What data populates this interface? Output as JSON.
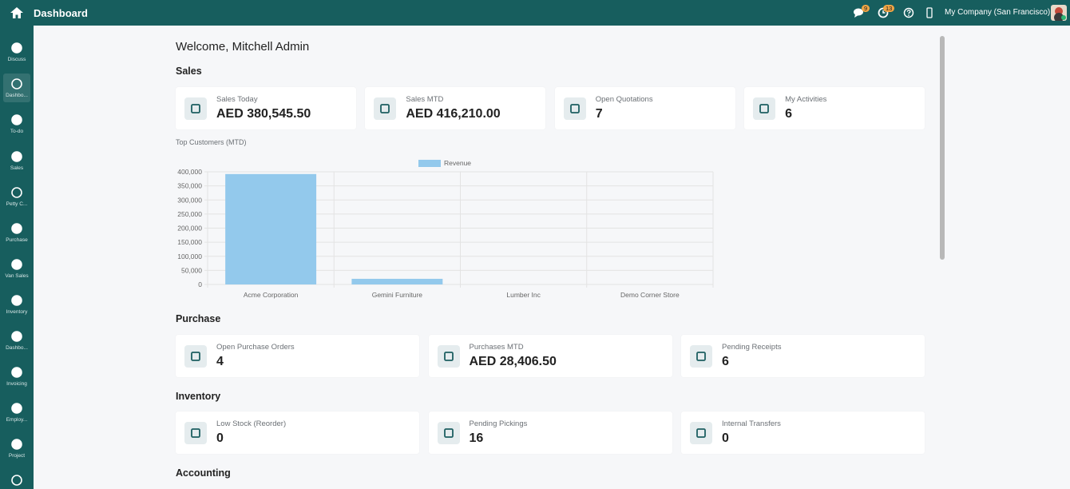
{
  "topbar": {
    "title": "Dashboard",
    "discuss_count": "9",
    "activity_count": "13",
    "company": "My Company (San Francisco)"
  },
  "sidebar": [
    "Discuss",
    "Dashbo...",
    "To-do",
    "Sales",
    "Petty C...",
    "Purchase",
    "Van Sales",
    "Inventory",
    "Dashbo...",
    "Invoicing",
    "Employ...",
    "Project"
  ],
  "welcome": "Welcome, Mitchell Admin",
  "sections": [
    {
      "title": "Sales",
      "cards": [
        {
          "label": "Sales Today",
          "value": "AED 380,545.50"
        },
        {
          "label": "Sales MTD",
          "value": "AED 416,210.00"
        },
        {
          "label": "Open Quotations",
          "value": "7"
        },
        {
          "label": "My Activities",
          "value": "6"
        }
      ]
    },
    {
      "title": "Purchase",
      "cards": [
        {
          "label": "Open Purchase Orders",
          "value": "4"
        },
        {
          "label": "Purchases MTD",
          "value": "AED 28,406.50"
        },
        {
          "label": "Pending Receipts",
          "value": "6"
        }
      ]
    },
    {
      "title": "Inventory",
      "cards": [
        {
          "label": "Low Stock (Reorder)",
          "value": "0"
        },
        {
          "label": "Pending Pickings",
          "value": "16"
        },
        {
          "label": "Internal Transfers",
          "value": "0"
        }
      ]
    },
    {
      "title": "Accounting",
      "cards": []
    }
  ],
  "chart_data": {
    "type": "bar",
    "title": "Top Customers (MTD)",
    "categories": [
      "Acme Corporation",
      "Gemini Furniture",
      "Lumber Inc",
      "Demo Corner Store"
    ],
    "series": [
      {
        "name": "Revenue",
        "color": "#93c9ec",
        "values": [
          392000,
          20000,
          0,
          0
        ]
      }
    ],
    "ylim": [
      0,
      400000
    ],
    "yticks": [
      0,
      {
        "value": 50000,
        "label": "50,000"
      },
      {
        "value": 100000,
        "label": "100,000"
      },
      {
        "value": 150000,
        "label": "150,000"
      },
      {
        "value": 200000,
        "label": "200,000"
      },
      {
        "value": 250000,
        "label": "250,000"
      },
      {
        "value": 300000,
        "label": "300,000"
      },
      {
        "value": 350000,
        "label": "350,000"
      },
      {
        "value": 400000,
        "label": "400,000"
      }
    ],
    "grid": true
  }
}
